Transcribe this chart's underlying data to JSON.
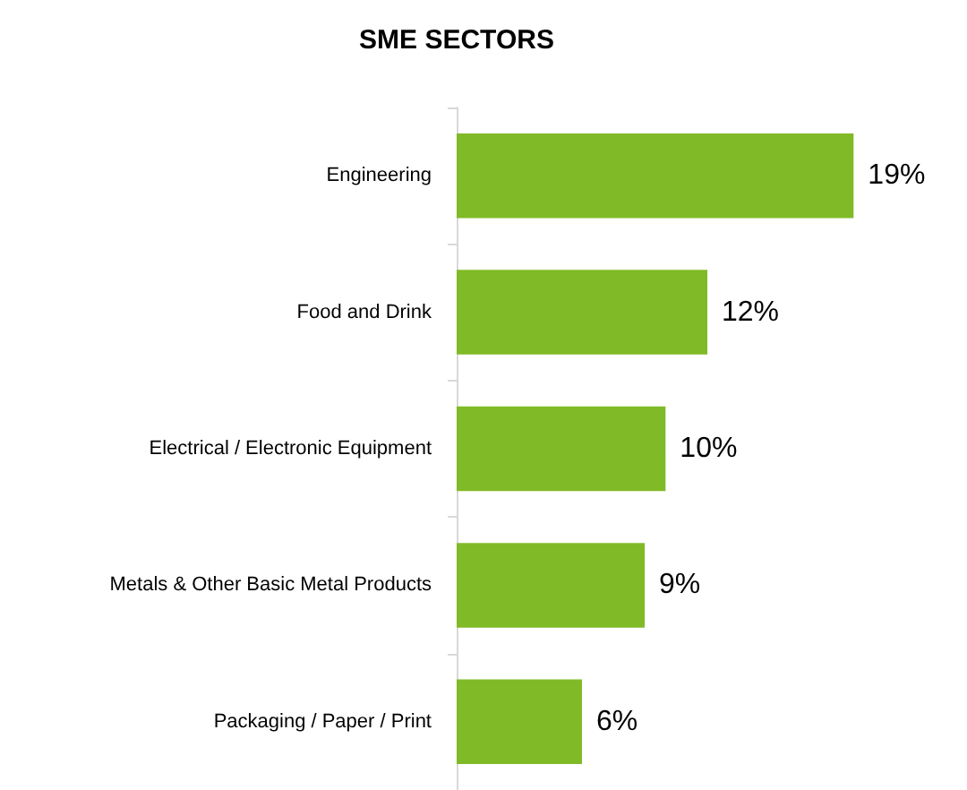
{
  "chart_data": {
    "type": "bar",
    "orientation": "horizontal",
    "title": "SME SECTORS",
    "categories": [
      "Engineering",
      "Food and Drink",
      "Electrical / Electronic Equipment",
      "Metals & Other Basic Metal Products",
      "Packaging / Paper / Print"
    ],
    "values": [
      19,
      12,
      10,
      9,
      6
    ],
    "value_labels": [
      "19%",
      "12%",
      "10%",
      "9%",
      "6%"
    ],
    "color": "#80ba27"
  }
}
